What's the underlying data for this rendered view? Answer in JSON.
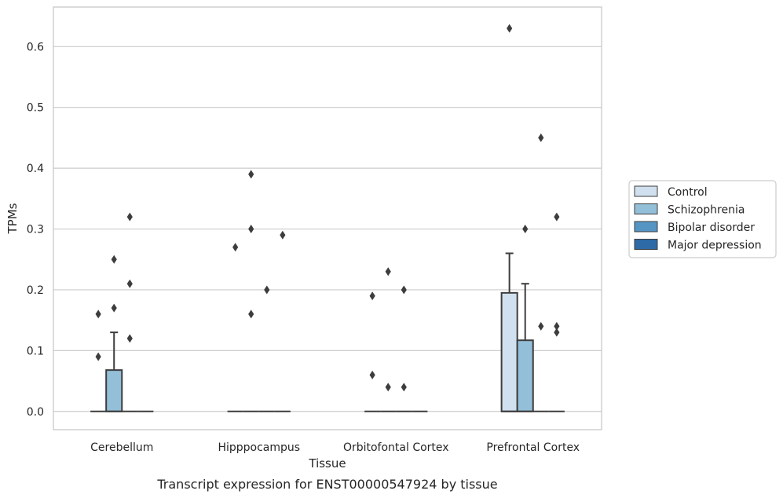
{
  "chart_data": {
    "type": "box",
    "caption": "Transcript expression for ENST00000547924 by tissue",
    "xlabel": "Tissue",
    "ylabel": "TPMs",
    "ylim": [
      -0.03,
      0.665
    ],
    "yticks": [
      0.0,
      0.1,
      0.2,
      0.3,
      0.4,
      0.5,
      0.6
    ],
    "ytick_labels": [
      "0.0",
      "0.1",
      "0.2",
      "0.3",
      "0.4",
      "0.5",
      "0.6"
    ],
    "grid": "horizontal",
    "legend_position": "right",
    "categories": [
      "Cerebellum",
      "Hipppocampus",
      "Orbitofontal Cortex",
      "Prefrontal Cortex"
    ],
    "series": [
      {
        "name": "Control",
        "color": "#d0e0ee",
        "boxes": [
          {
            "q1": 0,
            "median": 0,
            "q3": 0,
            "whisker_low": 0,
            "whisker_high": 0,
            "outliers": [
              0.16,
              0.09
            ]
          },
          {
            "q1": 0,
            "median": 0,
            "q3": 0,
            "whisker_low": 0,
            "whisker_high": 0,
            "outliers": [
              0.27
            ]
          },
          {
            "q1": 0,
            "median": 0,
            "q3": 0,
            "whisker_low": 0,
            "whisker_high": 0,
            "outliers": [
              0.19,
              0.06
            ]
          },
          {
            "q1": 0,
            "median": 0,
            "q3": 0.195,
            "whisker_low": 0,
            "whisker_high": 0.26,
            "outliers": [
              0.63
            ]
          }
        ]
      },
      {
        "name": "Schizophrenia",
        "color": "#94bfd8",
        "boxes": [
          {
            "q1": 0,
            "median": 0,
            "q3": 0.068,
            "whisker_low": 0,
            "whisker_high": 0.13,
            "outliers": [
              0.25,
              0.17
            ]
          },
          {
            "q1": 0,
            "median": 0,
            "q3": 0,
            "whisker_low": 0,
            "whisker_high": 0,
            "outliers": [
              0.39,
              0.3,
              0.16
            ]
          },
          {
            "q1": 0,
            "median": 0,
            "q3": 0,
            "whisker_low": 0,
            "whisker_high": 0,
            "outliers": [
              0.23,
              0.04
            ]
          },
          {
            "q1": 0,
            "median": 0,
            "q3": 0.117,
            "whisker_low": 0,
            "whisker_high": 0.21,
            "outliers": [
              0.3
            ]
          }
        ]
      },
      {
        "name": "Bipolar disorder",
        "color": "#5595c4",
        "boxes": [
          {
            "q1": 0,
            "median": 0,
            "q3": 0,
            "whisker_low": 0,
            "whisker_high": 0,
            "outliers": [
              0.32,
              0.21,
              0.12
            ]
          },
          {
            "q1": 0,
            "median": 0,
            "q3": 0,
            "whisker_low": 0,
            "whisker_high": 0,
            "outliers": [
              0.2
            ]
          },
          {
            "q1": 0,
            "median": 0,
            "q3": 0,
            "whisker_low": 0,
            "whisker_high": 0,
            "outliers": [
              0.2,
              0.04
            ]
          },
          {
            "q1": 0,
            "median": 0,
            "q3": 0,
            "whisker_low": 0,
            "whisker_high": 0,
            "outliers": [
              0.45,
              0.14
            ]
          }
        ]
      },
      {
        "name": "Major depression",
        "color": "#2d6aa6",
        "boxes": [
          {
            "q1": 0,
            "median": 0,
            "q3": 0,
            "whisker_low": 0,
            "whisker_high": 0,
            "outliers": []
          },
          {
            "q1": 0,
            "median": 0,
            "q3": 0,
            "whisker_low": 0,
            "whisker_high": 0,
            "outliers": [
              0.29
            ]
          },
          {
            "q1": 0,
            "median": 0,
            "q3": 0,
            "whisker_low": 0,
            "whisker_high": 0,
            "outliers": []
          },
          {
            "q1": 0,
            "median": 0,
            "q3": 0,
            "whisker_low": 0,
            "whisker_high": 0,
            "outliers": [
              0.32,
              0.14,
              0.13
            ]
          }
        ]
      }
    ]
  }
}
